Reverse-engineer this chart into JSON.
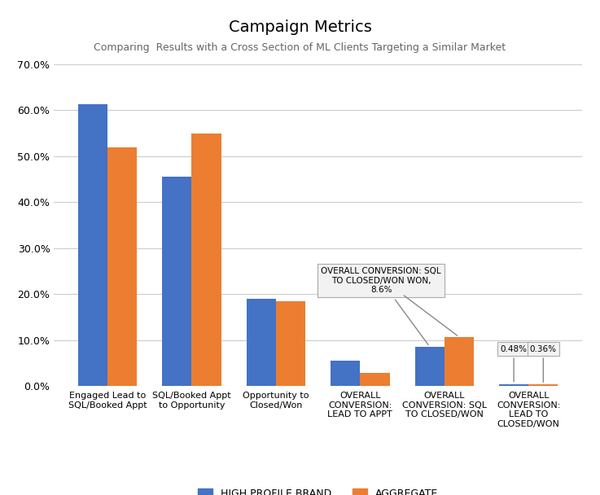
{
  "title": "Campaign Metrics",
  "subtitle": "Comparing  Results with a Cross Section of ML Clients Targeting a Similar Market",
  "categories": [
    "Engaged Lead to\nSQL/Booked Appt",
    "SQL/Booked Appt\nto Opportunity",
    "Opportunity to\nClosed/Won",
    "OVERALL\nCONVERSION:\nLEAD TO APPT",
    "OVERALL\nCONVERSION: SQL\nTO CLOSED/WON",
    "OVERALL\nCONVERSION:\nLEAD TO\nCLOSED/WON"
  ],
  "brand_values": [
    0.614,
    0.455,
    0.19,
    0.056,
    0.086,
    0.0048
  ],
  "aggregate_values": [
    0.52,
    0.55,
    0.185,
    0.028,
    0.107,
    0.0036
  ],
  "brand_color": "#4472C4",
  "aggregate_color": "#ED7D31",
  "ylim": [
    0,
    0.7
  ],
  "yticks": [
    0.0,
    0.1,
    0.2,
    0.3,
    0.4,
    0.5,
    0.6,
    0.7
  ],
  "background_color": "#FFFFFF",
  "grid_color": "#CCCCCC",
  "legend_labels": [
    "HIGH PROFILE BRAND",
    "AGGREGATE"
  ],
  "annotation_text": "OVERALL CONVERSION: SQL\nTO CLOSED/WON WON,\n8.6%",
  "annotation_brand_label": "0.48%",
  "annotation_agg_label": "0.36%"
}
